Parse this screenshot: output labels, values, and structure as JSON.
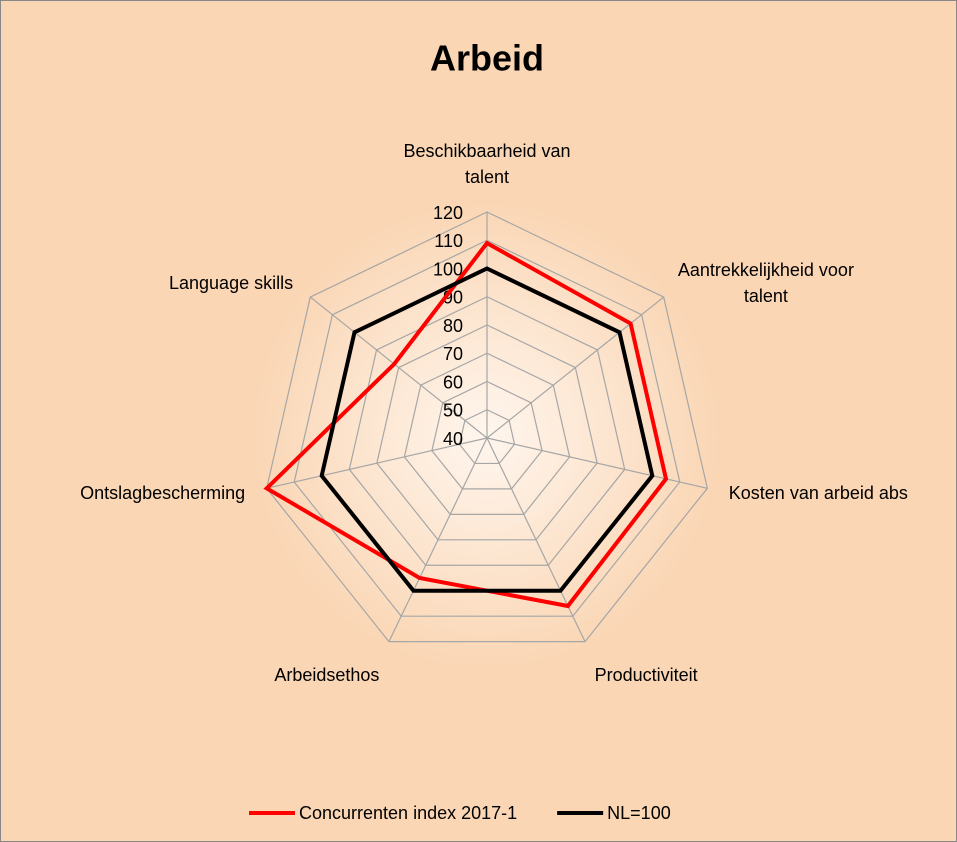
{
  "chart_data": {
    "type": "radar",
    "title": "Arbeid",
    "categories": [
      "Beschikbaarheid van talent",
      "Aantrekkelijkheid voor talent",
      "Kosten van arbeid abs",
      "Productiviteit",
      "Arbeidsethos",
      "Ontslagbescherming",
      "Language skills"
    ],
    "series": [
      {
        "name": "Concurrenten index 2017-1",
        "color": "#ff0000",
        "values": [
          109,
          105,
          105,
          106,
          95,
          120,
          82
        ]
      },
      {
        "name": "NL=100",
        "color": "#000000",
        "values": [
          100,
          100,
          100,
          100,
          100,
          100,
          100
        ]
      }
    ],
    "ylim": [
      40,
      120
    ],
    "yticks": [
      40,
      50,
      60,
      70,
      80,
      90,
      100,
      110,
      120
    ],
    "grid": true
  }
}
